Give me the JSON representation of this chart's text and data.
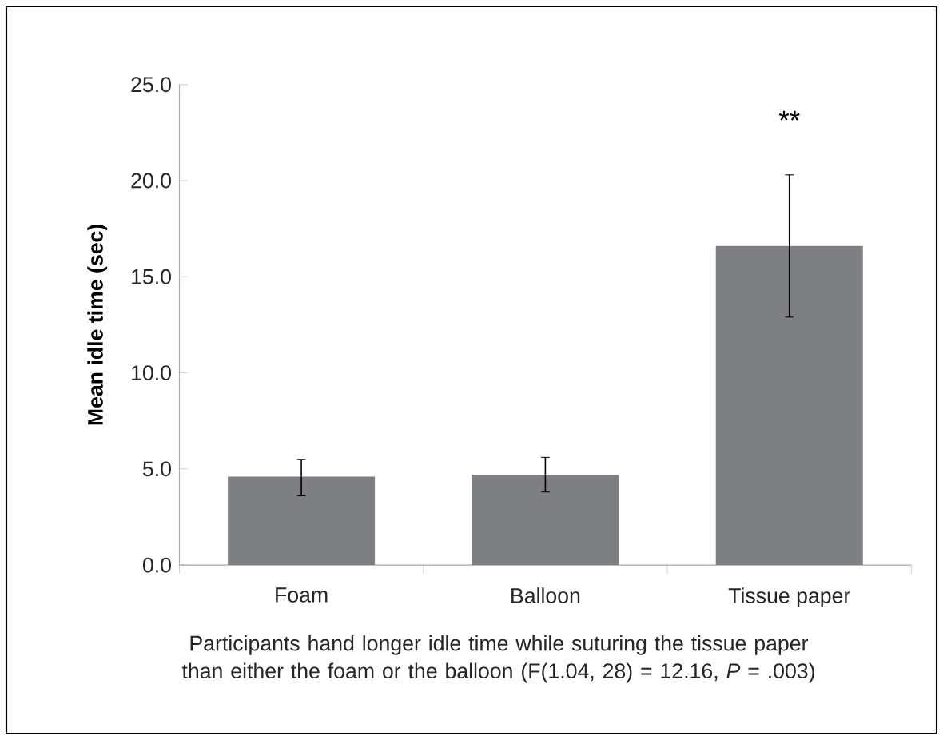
{
  "chart_data": {
    "type": "bar",
    "ylabel": "Mean idle time (sec)",
    "categories": [
      "Foam",
      "Balloon",
      "Tissue paper"
    ],
    "values": [
      4.6,
      4.7,
      16.6
    ],
    "color": "#7e7f83",
    "errors": [
      [
        3.6,
        5.5
      ],
      [
        3.8,
        5.6
      ],
      [
        12.9,
        20.3
      ]
    ],
    "ylim": [
      0,
      25
    ],
    "yticks": [
      {
        "value": 0,
        "label": "0.0"
      },
      {
        "value": 5,
        "label": "5.0"
      },
      {
        "value": 10,
        "label": "10.0"
      },
      {
        "value": 15,
        "label": "15.0"
      },
      {
        "value": 20,
        "label": "20.0"
      },
      {
        "value": 25,
        "label": "25.0"
      }
    ],
    "annotations": [
      "**",
      "Participants hand longer idle time while suturing the tissue paper than either the foam or the balloon (F(1.04, 28) = 12.16, *P* = .003)"
    ]
  }
}
